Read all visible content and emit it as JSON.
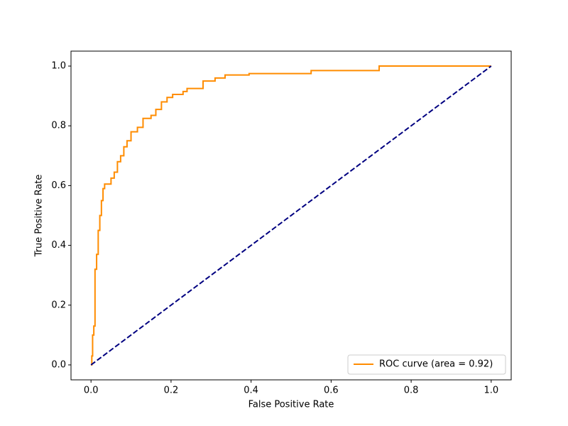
{
  "chart_data": {
    "type": "line",
    "xlabel": "False Positive Rate",
    "ylabel": "True Positive Rate",
    "xlim": [
      -0.05,
      1.05
    ],
    "ylim": [
      -0.05,
      1.05
    ],
    "xticks": [
      {
        "value": 0,
        "label": "0.0"
      },
      0.2,
      0.4,
      0.6,
      0.8,
      {
        "value": 1,
        "label": "1.0"
      }
    ],
    "yticks": [
      {
        "value": 0,
        "label": "0.0"
      },
      0.2,
      0.4,
      0.6,
      0.8,
      {
        "value": 1,
        "label": "1.0"
      }
    ],
    "legend": "lower right",
    "series": [
      {
        "name": "ROC curve (area = 0.92)",
        "color": "#ff8c00",
        "linestyle": "solid",
        "x": [
          0,
          0.002,
          0.002,
          0.004,
          0.004,
          0.007,
          0.007,
          0.01,
          0.01,
          0.014,
          0.014,
          0.018,
          0.018,
          0.022,
          0.022,
          0.026,
          0.026,
          0.03,
          0.03,
          0.034,
          0.034,
          0.05,
          0.05,
          0.058,
          0.058,
          0.066,
          0.066,
          0.074,
          0.074,
          0.082,
          0.082,
          0.09,
          0.09,
          0.1,
          0.1,
          0.116,
          0.116,
          0.13,
          0.13,
          0.15,
          0.15,
          0.162,
          0.162,
          0.176,
          0.176,
          0.19,
          0.19,
          0.204,
          0.204,
          0.23,
          0.23,
          0.24,
          0.24,
          0.28,
          0.28,
          0.31,
          0.31,
          0.335,
          0.335,
          0.395,
          0.395,
          0.55,
          0.55,
          0.72,
          0.72,
          1
        ],
        "y": [
          0,
          0,
          0.03,
          0.03,
          0.1,
          0.1,
          0.13,
          0.13,
          0.32,
          0.32,
          0.37,
          0.37,
          0.45,
          0.45,
          0.5,
          0.5,
          0.55,
          0.55,
          0.59,
          0.59,
          0.605,
          0.605,
          0.625,
          0.625,
          0.645,
          0.645,
          0.68,
          0.68,
          0.7,
          0.7,
          0.73,
          0.73,
          0.75,
          0.75,
          0.78,
          0.78,
          0.795,
          0.795,
          0.825,
          0.825,
          0.835,
          0.835,
          0.855,
          0.855,
          0.88,
          0.88,
          0.895,
          0.895,
          0.905,
          0.905,
          0.915,
          0.915,
          0.925,
          0.925,
          0.95,
          0.95,
          0.96,
          0.96,
          0.97,
          0.97,
          0.975,
          0.975,
          0.985,
          0.985,
          1,
          1
        ]
      },
      {
        "color": "#000080",
        "linestyle": "dashed",
        "x": [
          0,
          1
        ],
        "y": [
          0,
          1
        ]
      }
    ]
  }
}
